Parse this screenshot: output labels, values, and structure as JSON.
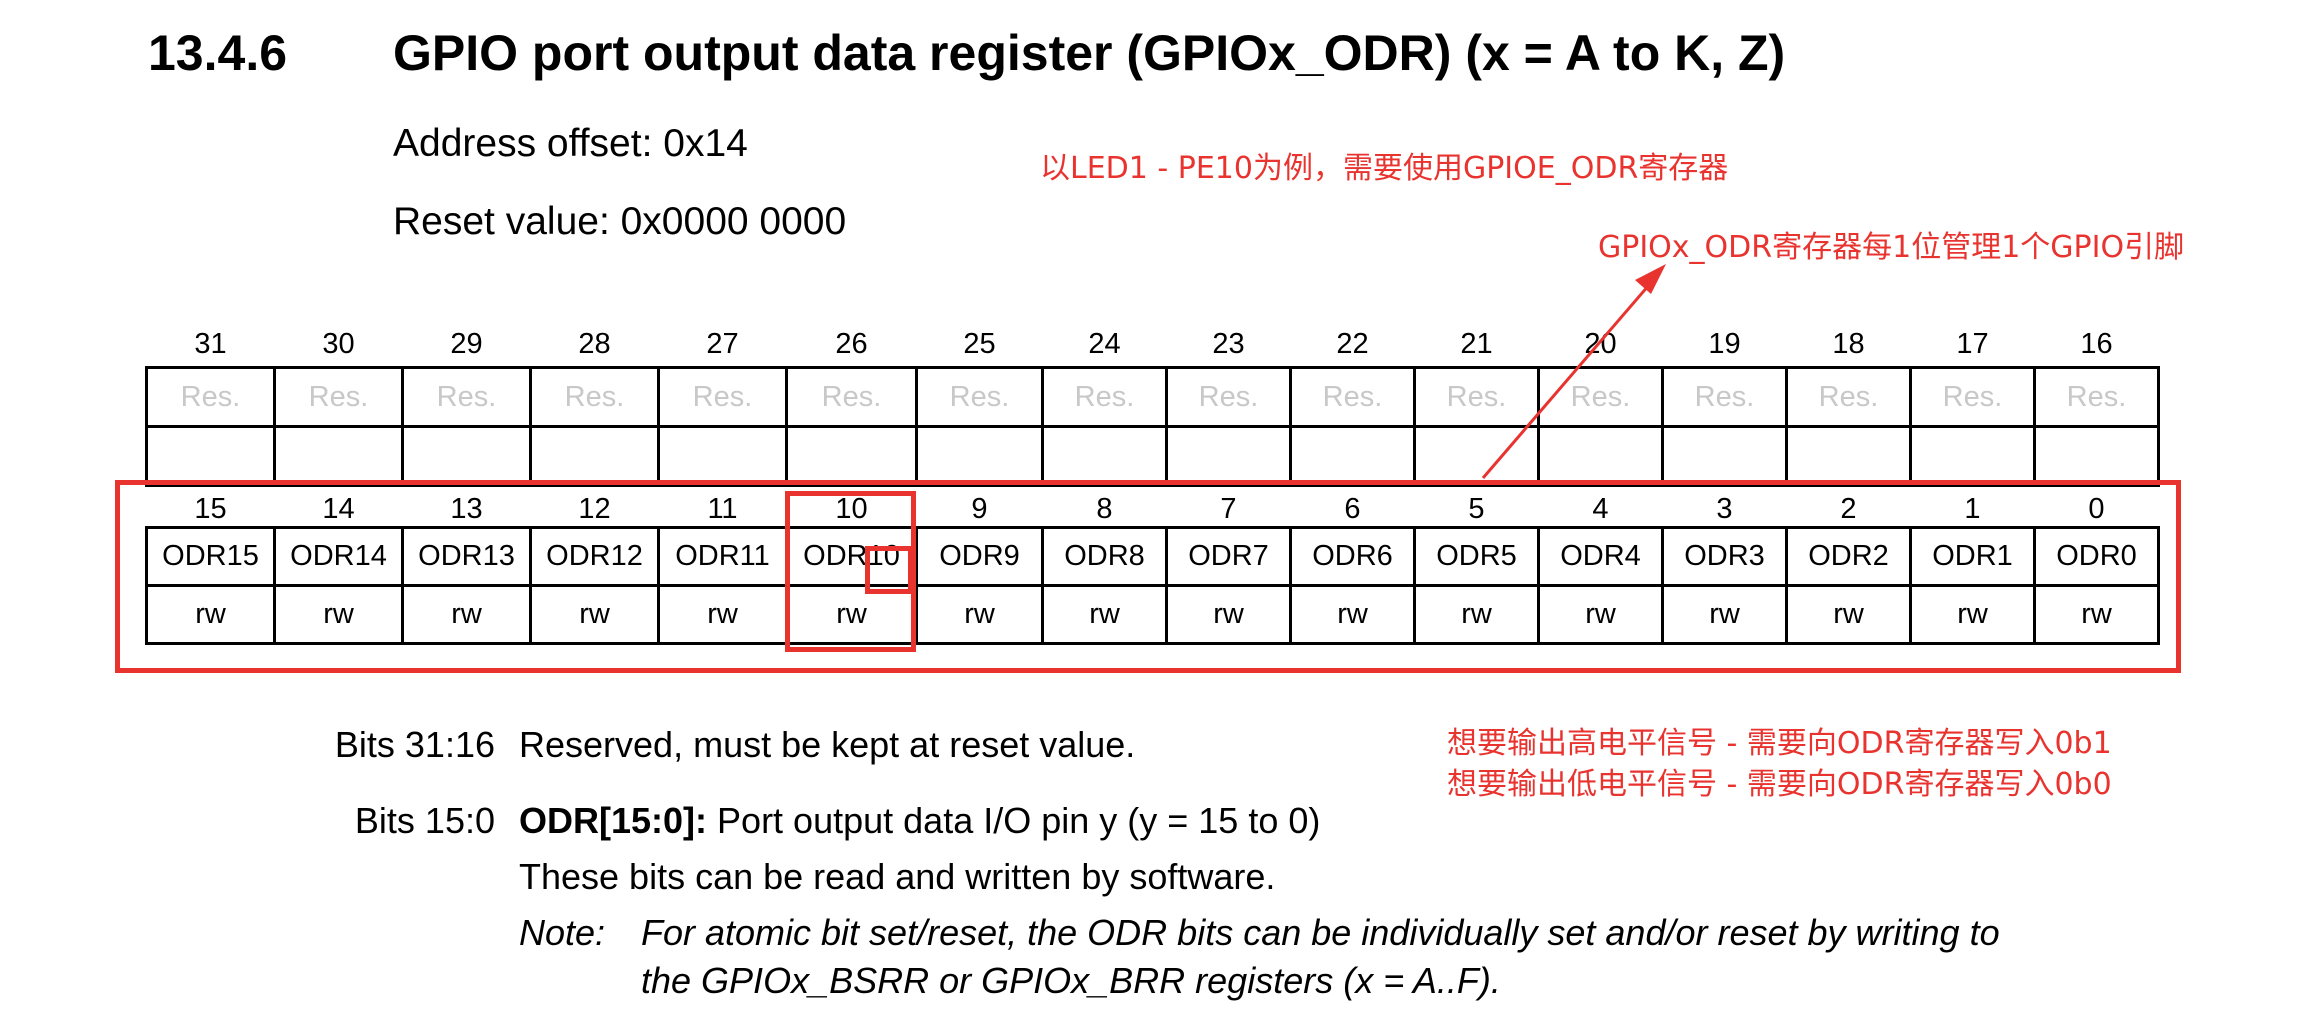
{
  "section": {
    "number": "13.4.6",
    "title": "GPIO port output data register (GPIOx_ODR) (x = A to K, Z)"
  },
  "register": {
    "address_offset": "Address offset: 0x14",
    "reset_value": "Reset value: 0x0000 0000"
  },
  "annotations": {
    "led_example": "以LED1 - PE10为例，需要使用GPIOE_ODR寄存器",
    "per_bit": "GPIOx_ODR寄存器每1位管理1个GPIO引脚",
    "output_high": "想要输出高电平信号 - 需要向ODR寄存器写入0b1",
    "output_low": "想要输出低电平信号 - 需要向ODR寄存器写入0b0"
  },
  "bitfield_high": {
    "bits": [
      "31",
      "30",
      "29",
      "28",
      "27",
      "26",
      "25",
      "24",
      "23",
      "22",
      "21",
      "20",
      "19",
      "18",
      "17",
      "16"
    ],
    "fields": [
      "Res.",
      "Res.",
      "Res.",
      "Res.",
      "Res.",
      "Res.",
      "Res.",
      "Res.",
      "Res.",
      "Res.",
      "Res.",
      "Res.",
      "Res.",
      "Res.",
      "Res.",
      "Res."
    ],
    "access": [
      "",
      "",
      "",
      "",
      "",
      "",
      "",
      "",
      "",
      "",
      "",
      "",
      "",
      "",
      "",
      ""
    ]
  },
  "bitfield_low": {
    "bits": [
      "15",
      "14",
      "13",
      "12",
      "11",
      "10",
      "9",
      "8",
      "7",
      "6",
      "5",
      "4",
      "3",
      "2",
      "1",
      "0"
    ],
    "fields": [
      "ODR15",
      "ODR14",
      "ODR13",
      "ODR12",
      "ODR11",
      "ODR10",
      "ODR9",
      "ODR8",
      "ODR7",
      "ODR6",
      "ODR5",
      "ODR4",
      "ODR3",
      "ODR2",
      "ODR1",
      "ODR0"
    ],
    "access": [
      "rw",
      "rw",
      "rw",
      "rw",
      "rw",
      "rw",
      "rw",
      "rw",
      "rw",
      "rw",
      "rw",
      "rw",
      "rw",
      "rw",
      "rw",
      "rw"
    ]
  },
  "description": {
    "bits_31_16_label": "Bits 31:16",
    "bits_31_16_text": "Reserved, must be kept at reset value.",
    "bits_15_0_label": "Bits 15:0",
    "bits_15_0_field": "ODR[15:0]:",
    "bits_15_0_text": "Port output data I/O pin y (y = 15 to 0)",
    "rw_text": "These bits can be read and written by software.",
    "note_label": "Note:",
    "note_line1": "For atomic bit set/reset, the ODR bits can be individually set and/or reset by writing to",
    "note_line2": "the GPIOx_BSRR or GPIOx_BRR registers (x = A..F)."
  },
  "colors": {
    "annotation_red": "#e8332f"
  }
}
